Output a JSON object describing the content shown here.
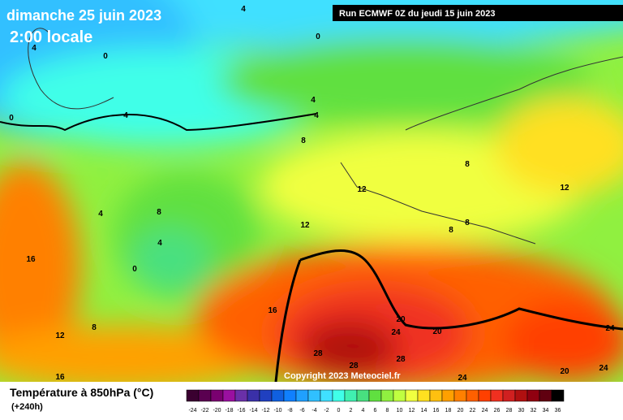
{
  "header": {
    "date": "dimanche 25 juin 2023",
    "time": "2:00 locale",
    "run": "Run ECMWF 0Z du jeudi 15 juin 2023"
  },
  "copyright": "Copyright 2023 Meteociel.fr",
  "legend": {
    "title": "Température à 850hPa (°C)",
    "lead": "(+240h)",
    "ticks": [
      -24,
      -22,
      -20,
      -18,
      -16,
      -14,
      -12,
      -10,
      -8,
      -6,
      -4,
      -2,
      0,
      2,
      4,
      6,
      8,
      10,
      12,
      14,
      16,
      18,
      20,
      22,
      24,
      26,
      28,
      30,
      32,
      34,
      36
    ],
    "colors": [
      "#3a0030",
      "#5a0050",
      "#7a0070",
      "#9a10a0",
      "#6a30a8",
      "#3a30a8",
      "#2040c0",
      "#1060e0",
      "#1080ff",
      "#20a0ff",
      "#30c0ff",
      "#40e0ff",
      "#40ffe8",
      "#40f0b0",
      "#48e080",
      "#60e040",
      "#90f040",
      "#c0ff40",
      "#f0ff40",
      "#ffe020",
      "#ffc010",
      "#ffa000",
      "#ff8000",
      "#ff6000",
      "#ff4000",
      "#f03020",
      "#d02020",
      "#b01010",
      "#900010",
      "#600010",
      "#000000"
    ]
  },
  "contour_labels": [
    "4",
    "0",
    "0",
    "4",
    "0",
    "4",
    "4",
    "4",
    "8",
    "8",
    "12",
    "12",
    "8",
    "8",
    "4",
    "8",
    "4",
    "0",
    "12",
    "16",
    "16",
    "8",
    "12",
    "16",
    "20",
    "20",
    "24",
    "24",
    "28",
    "28",
    "28",
    "24",
    "20",
    "24"
  ]
}
